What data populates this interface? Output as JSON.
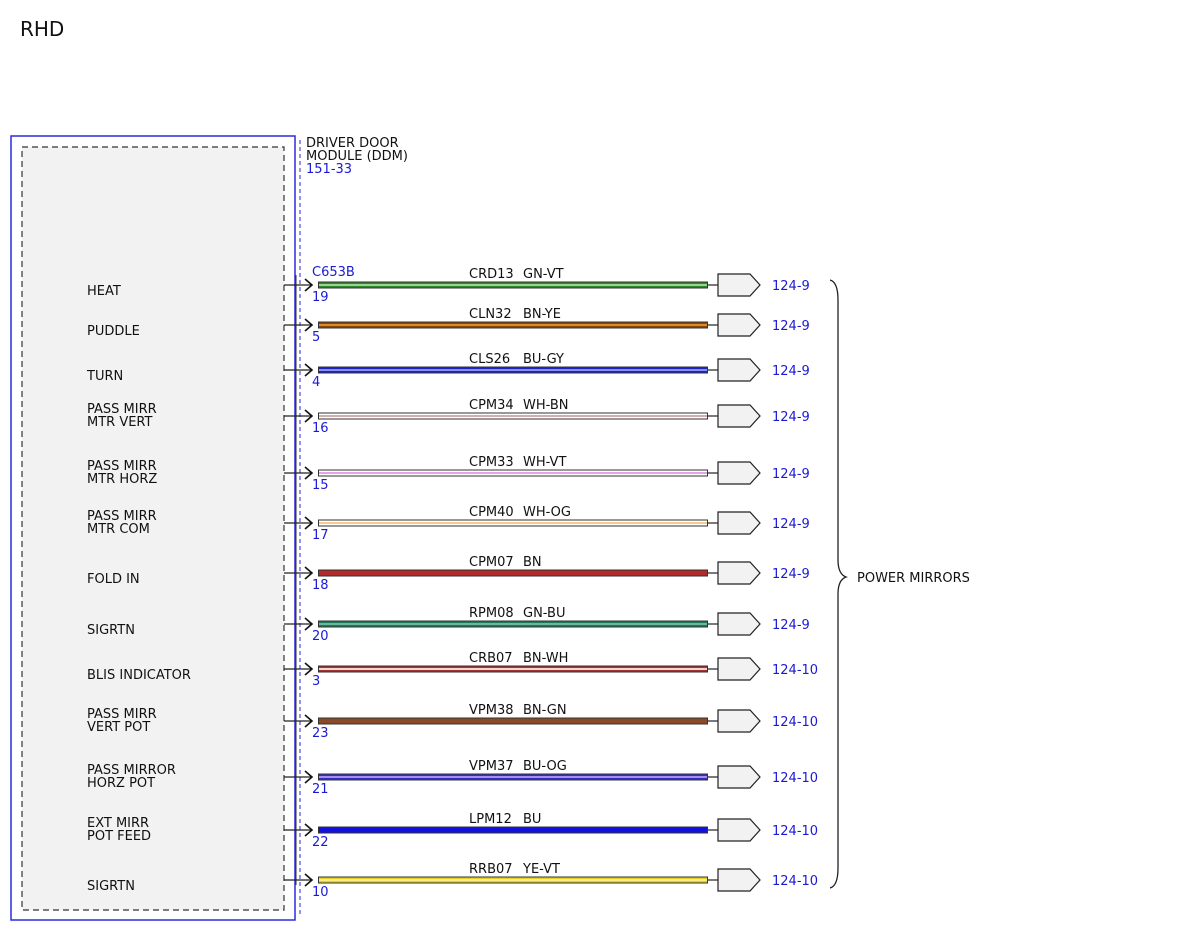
{
  "page_title": "RHD",
  "module": {
    "name_line1": "DRIVER DOOR",
    "name_line2": "MODULE (DDM)",
    "ref": "151-33",
    "connector": "C653B"
  },
  "group_label": "POWER MIRRORS",
  "colors": {
    "module_border": "#2a2ae0",
    "module_fill": "#f2f2f2",
    "ref_text": "#1a1ad6",
    "wire_outline": "#333333"
  },
  "wires": [
    {
      "func1": "HEAT",
      "func2": "",
      "pin": "19",
      "circuit": "CRD13",
      "color_code": "GN-VT",
      "ref": "124-9",
      "base": "#2f8a2f",
      "stripe": "#b7e3a8"
    },
    {
      "func1": "PUDDLE",
      "func2": "",
      "pin": "5",
      "circuit": "CLN32",
      "color_code": "BN-YE",
      "ref": "124-9",
      "base": "#8b4513",
      "stripe": "#f0a020"
    },
    {
      "func1": "TURN",
      "func2": "",
      "pin": "4",
      "circuit": "CLS26",
      "color_code": "BU-GY",
      "ref": "124-9",
      "base": "#2020c8",
      "stripe": "#9ab0ff"
    },
    {
      "func1": "PASS MIRR",
      "func2": "MTR VERT",
      "pin": "16",
      "circuit": "CPM34",
      "color_code": "WH-BN",
      "ref": "124-9",
      "base": "#ffffff",
      "stripe": "#c89a9a"
    },
    {
      "func1": "PASS MIRR",
      "func2": "MTR HORZ",
      "pin": "15",
      "circuit": "CPM33",
      "color_code": "WH-VT",
      "ref": "124-9",
      "base": "#ffffff",
      "stripe": "#e08ce0"
    },
    {
      "func1": "PASS MIRR",
      "func2": "MTR COM",
      "pin": "17",
      "circuit": "CPM40",
      "color_code": "WH-OG",
      "ref": "124-9",
      "base": "#ffffff",
      "stripe": "#f5c070"
    },
    {
      "func1": "FOLD IN",
      "func2": "",
      "pin": "18",
      "circuit": "CPM07",
      "color_code": "BN",
      "ref": "124-9",
      "base": "#b22a2a",
      "stripe": "#b22a2a"
    },
    {
      "func1": "SIGRTN",
      "func2": "",
      "pin": "20",
      "circuit": "RPM08",
      "color_code": "GN-BU",
      "ref": "124-9",
      "base": "#1f7a5a",
      "stripe": "#7fc8b0"
    },
    {
      "func1": "BLIS INDICATOR",
      "func2": "",
      "pin": "3",
      "circuit": "CRB07",
      "color_code": "BN-WH",
      "ref": "124-10",
      "base": "#a83232",
      "stripe": "#ffffff"
    },
    {
      "func1": "PASS MIRR",
      "func2": "VERT POT",
      "pin": "23",
      "circuit": "VPM38",
      "color_code": "BN-GN",
      "ref": "124-10",
      "base": "#8a4a2a",
      "stripe": "#8a4a2a"
    },
    {
      "func1": "PASS MIRROR",
      "func2": "HORZ POT",
      "pin": "21",
      "circuit": "VPM37",
      "color_code": "BU-OG",
      "ref": "124-10",
      "base": "#3030c0",
      "stripe": "#c8a0ff"
    },
    {
      "func1": "EXT MIRR",
      "func2": "POT FEED",
      "pin": "22",
      "circuit": "LPM12",
      "color_code": "BU",
      "ref": "124-10",
      "base": "#1010e0",
      "stripe": "#1010e0"
    },
    {
      "func1": "SIGRTN",
      "func2": "",
      "pin": "10",
      "circuit": "RRB07",
      "color_code": "YE-VT",
      "ref": "124-10",
      "base": "#e8d020",
      "stripe": "#fff3a0"
    }
  ]
}
